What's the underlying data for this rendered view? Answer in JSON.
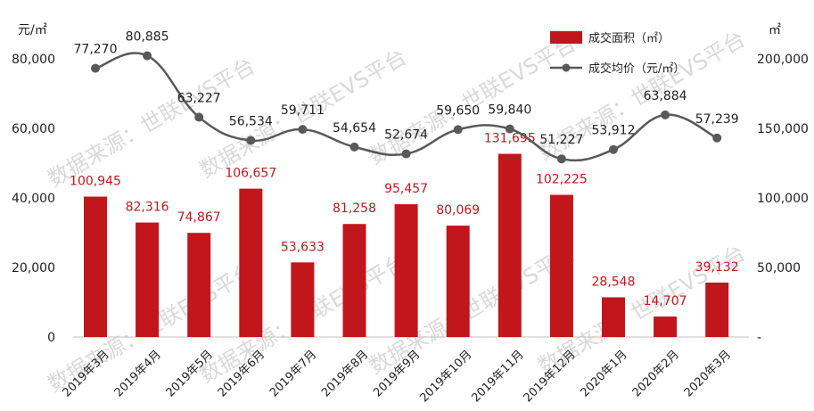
{
  "chart_data": {
    "type": "bar+line",
    "title": "",
    "categories": [
      "2019年3月",
      "2019年4月",
      "2019年5月",
      "2019年6月",
      "2019年7月",
      "2019年8月",
      "2019年9月",
      "2019年10月",
      "2019年11月",
      "2019年12月",
      "2020年1月",
      "2020年2月",
      "2020年3月"
    ],
    "series": [
      {
        "name": "成交面积（㎡）",
        "type": "bar",
        "axis": "right",
        "color": "#c0161c",
        "values": [
          100945,
          82316,
          74867,
          106657,
          53633,
          81258,
          95457,
          80069,
          131695,
          102225,
          28548,
          14707,
          39132
        ],
        "labels": [
          "100,945",
          "82,316",
          "74,867",
          "106,657",
          "53,633",
          "81,258",
          "95,457",
          "80,069",
          "131,695",
          "102,225",
          "28,548",
          "14,707",
          "39,132"
        ]
      },
      {
        "name": "成交均价（元/㎡）",
        "type": "line",
        "axis": "left",
        "color": "#595959",
        "values": [
          77270,
          80885,
          63227,
          56534,
          59711,
          54654,
          52674,
          59650,
          59840,
          51227,
          53912,
          63884,
          57239
        ],
        "labels": [
          "77,270",
          "80,885",
          "63,227",
          "56,534",
          "59,711",
          "54,654",
          "52,674",
          "59,650",
          "59,840",
          "51,227",
          "53,912",
          "63,884",
          "57,239"
        ]
      }
    ],
    "left_axis": {
      "unit": "元/㎡",
      "ylim": [
        0,
        80000
      ],
      "ticks": [
        0,
        20000,
        40000,
        60000,
        80000
      ],
      "tick_labels": [
        "0",
        "20,000",
        "40,000",
        "60,000",
        "80,000"
      ]
    },
    "right_axis": {
      "unit": "㎡",
      "ylim": [
        0,
        200000
      ],
      "ticks": [
        0,
        50000,
        100000,
        150000,
        200000
      ],
      "tick_labels": [
        "-",
        "50,000",
        "100,000",
        "150,000",
        "200,000"
      ]
    },
    "legend_position": "top-right",
    "grid": false
  },
  "watermark": "数据来源：世联EVS平台"
}
